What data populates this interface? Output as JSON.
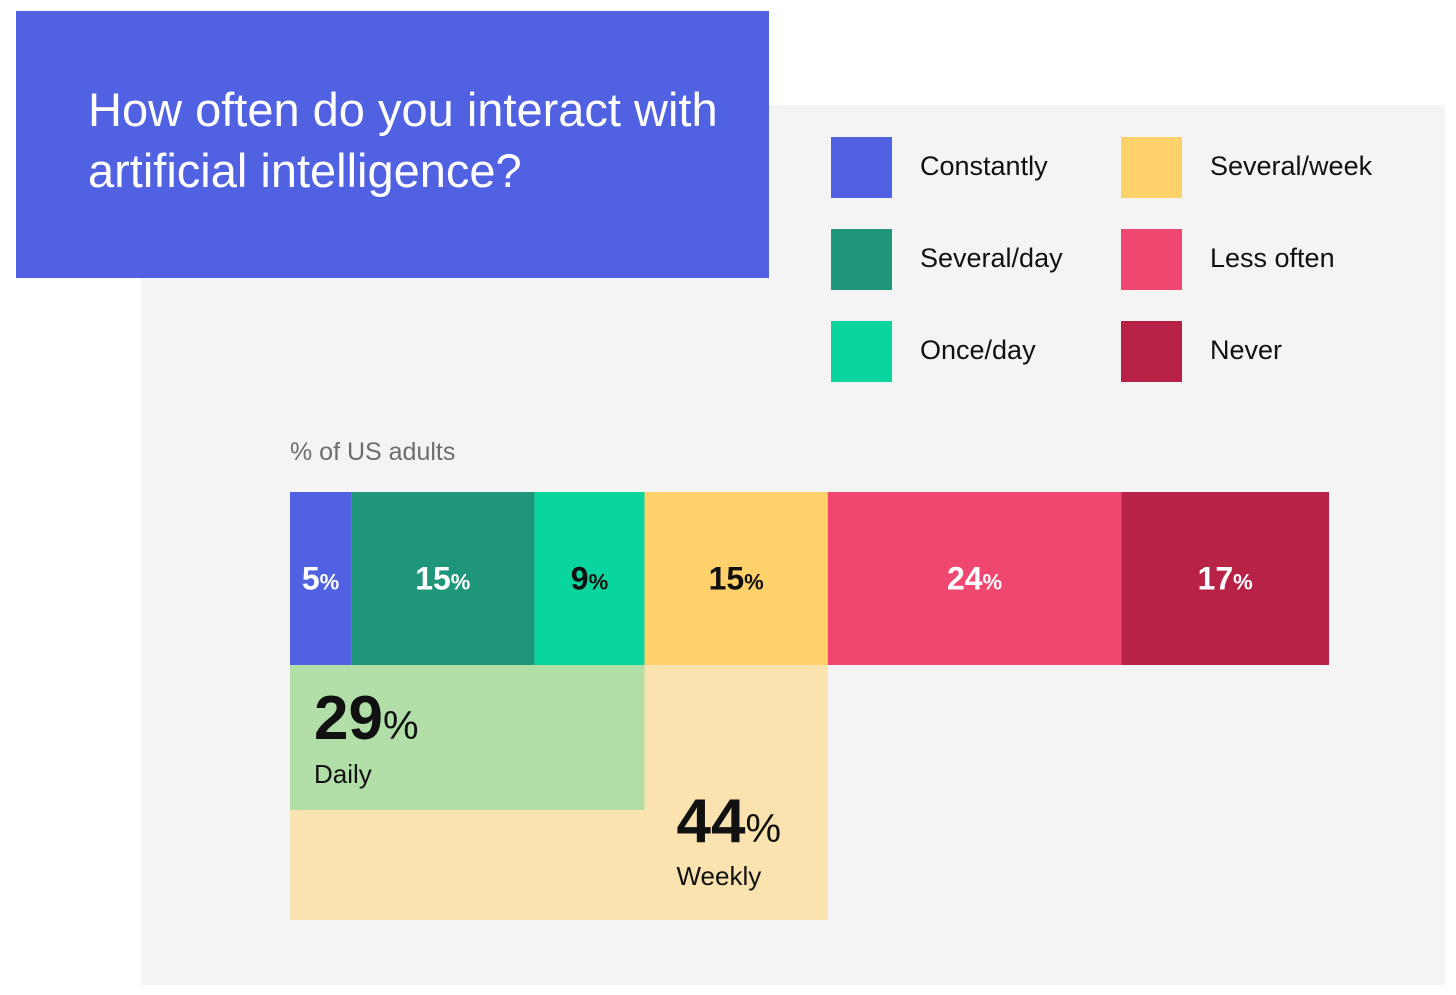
{
  "title": "How often do you interact with artificial intelligence?",
  "colors": {
    "title_bg": "#5061e2",
    "panel_bg": "#f4f4f4",
    "daily_group": "#b2dfa8",
    "weekly_group": "#fae3ae"
  },
  "chart_data": {
    "type": "bar",
    "orientation": "horizontal-stacked",
    "axis_caption": "% of US adults",
    "percent_sign": "%",
    "series": [
      {
        "name": "Constantly",
        "value": 5,
        "color": "#5061e2",
        "label_color": "#ffffff"
      },
      {
        "name": "Several/day",
        "value": 15,
        "color": "#1f9679",
        "label_color": "#ffffff"
      },
      {
        "name": "Once/day",
        "value": 9,
        "color": "#0ad59e",
        "label_color": "#111111"
      },
      {
        "name": "Several/week",
        "value": 15,
        "color": "#fed16a",
        "label_color": "#111111"
      },
      {
        "name": "Less often",
        "value": 24,
        "color": "#ef476f",
        "label_color": "#ffffff"
      },
      {
        "name": "Never",
        "value": 17,
        "color": "#b72246",
        "label_color": "#ffffff"
      }
    ],
    "groups": [
      {
        "name": "Daily",
        "value": 29,
        "spans": [
          "Constantly",
          "Several/day",
          "Once/day"
        ]
      },
      {
        "name": "Weekly",
        "value": 44,
        "spans": [
          "Constantly",
          "Several/day",
          "Once/day",
          "Several/week"
        ]
      }
    ],
    "legend": {
      "position": "top-right",
      "columns": [
        [
          "Constantly",
          "Several/day",
          "Once/day"
        ],
        [
          "Several/week",
          "Less often",
          "Never"
        ]
      ]
    }
  }
}
